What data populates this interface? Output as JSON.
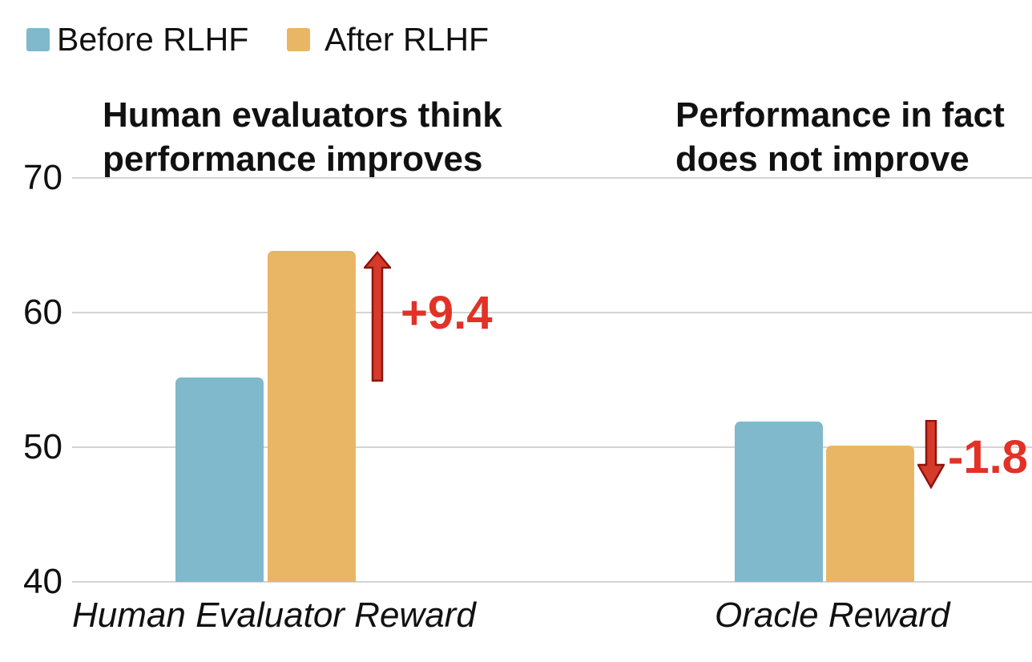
{
  "figure": {
    "headlines": {
      "left": {
        "line1": "Human evaluators think",
        "line2": "performance improves"
      },
      "right": {
        "line1": "Performance in fact",
        "line2": "does not improve"
      }
    }
  },
  "chart_data": {
    "type": "bar",
    "categories": [
      "Human Evaluator Reward",
      "Oracle Reward"
    ],
    "series": [
      {
        "name": "Before RLHF",
        "color": "#7FB9CB",
        "values": [
          55.2,
          51.9
        ]
      },
      {
        "name": "After RLHF",
        "color": "#E9B666",
        "values": [
          64.6,
          50.1
        ]
      }
    ],
    "xlabel": "",
    "ylabel": "",
    "yticks": [
      40,
      50,
      60,
      70
    ],
    "ylim": [
      40,
      70
    ],
    "grid": true,
    "legend_position": "top-left",
    "annotations": [
      {
        "text": "+9.4",
        "type": "increase",
        "category": "Human Evaluator Reward"
      },
      {
        "text": "-1.8",
        "type": "decrease",
        "category": "Oracle Reward"
      }
    ]
  },
  "colors": {
    "text": "#111111",
    "grid": "#D4D4D4",
    "red": "#E23227",
    "arrow_fill": "#D63A2B",
    "arrow_stroke": "#8C150C"
  }
}
